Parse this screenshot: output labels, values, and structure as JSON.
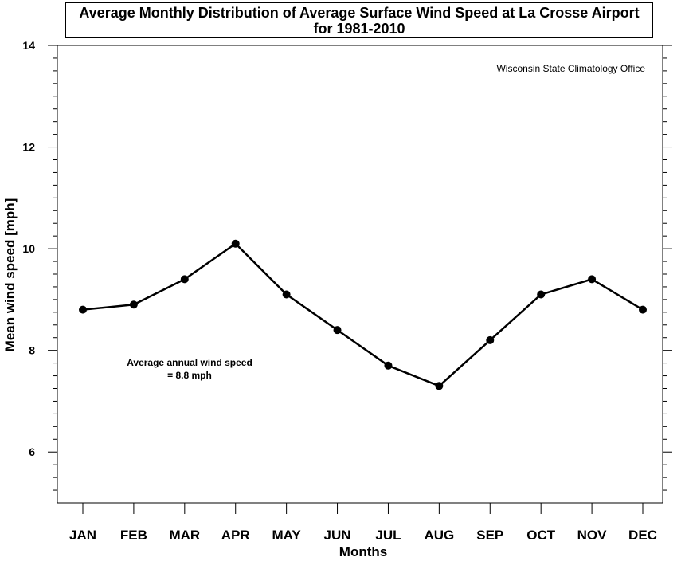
{
  "chart_data": {
    "type": "line",
    "title_line1": "Average Monthly Distribution of Average Surface Wind Speed at La Crosse Airport",
    "title_line2": "for 1981-2010",
    "credit": "Wisconsin State Climatology Office",
    "annotation_line1": "Average annual wind speed",
    "annotation_line2": "= 8.8 mph",
    "xlabel": "Months",
    "ylabel": "Mean wind speed [mph]",
    "categories": [
      "JAN",
      "FEB",
      "MAR",
      "APR",
      "MAY",
      "JUN",
      "JUL",
      "AUG",
      "SEP",
      "OCT",
      "NOV",
      "DEC"
    ],
    "values": [
      8.8,
      8.9,
      9.4,
      10.1,
      9.1,
      8.4,
      7.7,
      7.3,
      8.2,
      9.1,
      9.4,
      8.8
    ],
    "ylim": [
      5,
      14
    ],
    "yticks_major": [
      6,
      8,
      10,
      12,
      14
    ],
    "y_minor_step": 0.25,
    "grid": false,
    "line_color": "#000000"
  }
}
